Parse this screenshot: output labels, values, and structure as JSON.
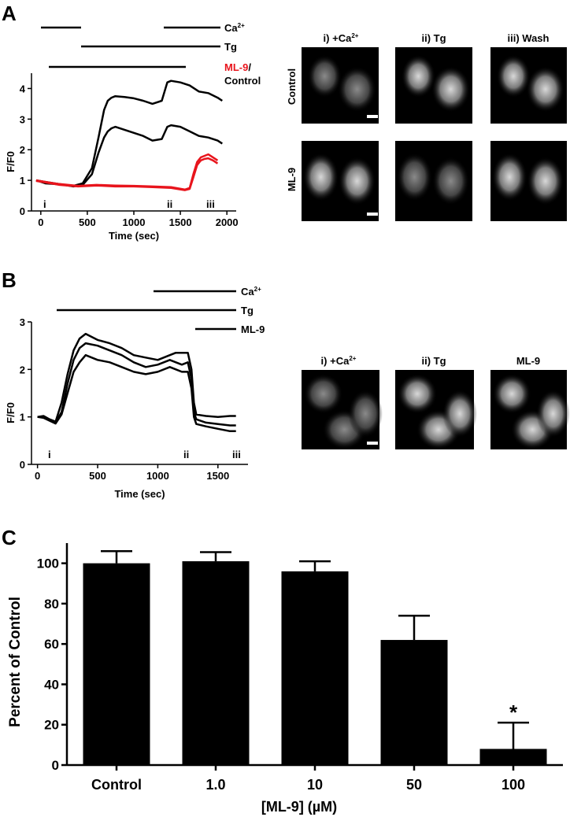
{
  "panel_a": {
    "label": "A",
    "bars": {
      "ca": "Ca",
      "ca_sup": "2+",
      "tg": "Tg",
      "ml9": "ML-9",
      "slash": "/",
      "control": "Control"
    },
    "image_col_labels": [
      "i) +Ca",
      "ii) Tg",
      "iii) Wash"
    ],
    "image_col_sup": "2+",
    "image_row_labels": [
      "Control",
      "ML-9"
    ],
    "time_markers": [
      "i",
      "ii",
      "iii"
    ],
    "colors": {
      "control": "#000000",
      "ml9": "#e8141c"
    }
  },
  "panel_b": {
    "label": "B",
    "bars": {
      "ca": "Ca",
      "ca_sup": "2+",
      "tg": "Tg",
      "ml9": "ML-9"
    },
    "image_col_labels": [
      "i) +Ca",
      "ii) Tg",
      "ML-9"
    ],
    "image_col_sup": "2+",
    "time_markers": [
      "i",
      "ii",
      "iii"
    ]
  },
  "panel_c": {
    "label": "C"
  },
  "chart_data": [
    {
      "type": "line",
      "xlabel": "Time (sec)",
      "ylabel": "F/F0",
      "xlim": [
        -100,
        2100
      ],
      "ylim": [
        0,
        4.5
      ],
      "xticks": [
        0,
        500,
        1000,
        1500,
        2000
      ],
      "yticks": [
        0,
        1,
        2,
        3,
        4
      ],
      "series": [
        {
          "x": [
            -50,
            50,
            150,
            250,
            350,
            450,
            550,
            620,
            680,
            720,
            760,
            800,
            900,
            1000,
            1100,
            1200,
            1300,
            1360,
            1400,
            1500,
            1600,
            1700,
            1800,
            1900,
            1950
          ],
          "y": [
            1.0,
            0.95,
            0.9,
            0.85,
            0.82,
            0.9,
            1.4,
            2.4,
            3.3,
            3.6,
            3.7,
            3.75,
            3.72,
            3.68,
            3.6,
            3.5,
            3.6,
            4.2,
            4.25,
            4.2,
            4.1,
            3.9,
            3.85,
            3.7,
            3.6
          ]
        },
        {
          "x": [
            -50,
            50,
            150,
            250,
            350,
            450,
            550,
            620,
            680,
            720,
            760,
            800,
            900,
            1000,
            1100,
            1200,
            1300,
            1360,
            1400,
            1500,
            1600,
            1700,
            1800,
            1900,
            1950
          ],
          "y": [
            1.0,
            0.9,
            0.88,
            0.85,
            0.8,
            0.85,
            1.2,
            1.9,
            2.4,
            2.6,
            2.7,
            2.75,
            2.65,
            2.55,
            2.45,
            2.3,
            2.35,
            2.75,
            2.8,
            2.75,
            2.6,
            2.45,
            2.4,
            2.3,
            2.2
          ]
        },
        {
          "x": [
            -50,
            50,
            200,
            400,
            600,
            800,
            1000,
            1200,
            1400,
            1550,
            1600,
            1640,
            1680,
            1720,
            1760,
            1800,
            1850,
            1900
          ],
          "y": [
            1.0,
            0.95,
            0.88,
            0.82,
            0.85,
            0.83,
            0.82,
            0.8,
            0.78,
            0.7,
            0.75,
            1.2,
            1.6,
            1.75,
            1.8,
            1.85,
            1.75,
            1.65
          ]
        },
        {
          "x": [
            -50,
            50,
            200,
            400,
            600,
            800,
            1000,
            1200,
            1400,
            1550,
            1600,
            1640,
            1680,
            1720,
            1760,
            1800,
            1850,
            1900
          ],
          "y": [
            0.98,
            0.93,
            0.85,
            0.8,
            0.83,
            0.8,
            0.8,
            0.78,
            0.75,
            0.68,
            0.72,
            1.1,
            1.5,
            1.65,
            1.7,
            1.72,
            1.65,
            1.55
          ]
        }
      ]
    },
    {
      "type": "line",
      "xlabel": "Time (sec)",
      "ylabel": "F/F0",
      "xlim": [
        -50,
        1750
      ],
      "ylim": [
        0,
        3
      ],
      "xticks": [
        0,
        500,
        1000,
        1500
      ],
      "yticks": [
        0,
        1,
        2,
        3
      ],
      "series": [
        {
          "x": [
            0,
            50,
            100,
            150,
            200,
            250,
            300,
            350,
            400,
            500,
            600,
            700,
            800,
            900,
            1000,
            1100,
            1150,
            1200,
            1250,
            1280,
            1300,
            1320,
            1400,
            1500,
            1600,
            1650
          ],
          "y": [
            1.0,
            1.02,
            0.95,
            0.9,
            1.3,
            1.9,
            2.4,
            2.65,
            2.75,
            2.62,
            2.55,
            2.45,
            2.3,
            2.25,
            2.2,
            2.3,
            2.35,
            2.35,
            2.35,
            2.0,
            1.3,
            1.05,
            1.02,
            1.0,
            1.02,
            1.02
          ]
        },
        {
          "x": [
            0,
            50,
            100,
            150,
            200,
            250,
            300,
            350,
            400,
            500,
            600,
            700,
            800,
            900,
            1000,
            1100,
            1150,
            1200,
            1250,
            1280,
            1300,
            1320,
            1400,
            1500,
            1600,
            1650
          ],
          "y": [
            1.0,
            1.0,
            0.93,
            0.88,
            1.1,
            1.7,
            2.2,
            2.45,
            2.55,
            2.5,
            2.4,
            2.3,
            2.15,
            2.05,
            2.1,
            2.2,
            2.15,
            2.1,
            2.15,
            1.8,
            1.1,
            0.95,
            0.88,
            0.85,
            0.82,
            0.82
          ]
        },
        {
          "x": [
            0,
            50,
            100,
            150,
            200,
            250,
            300,
            350,
            400,
            500,
            600,
            700,
            800,
            900,
            1000,
            1100,
            1150,
            1200,
            1250,
            1280,
            1300,
            1320,
            1400,
            1500,
            1600,
            1650
          ],
          "y": [
            1.0,
            0.98,
            0.92,
            0.86,
            1.05,
            1.5,
            1.95,
            2.15,
            2.3,
            2.2,
            2.15,
            2.05,
            1.95,
            1.9,
            1.95,
            2.05,
            2.0,
            1.95,
            1.95,
            1.6,
            1.0,
            0.85,
            0.8,
            0.75,
            0.7,
            0.7
          ]
        }
      ]
    },
    {
      "type": "bar",
      "categories": [
        "Control",
        "1.0",
        "10",
        "50",
        "100"
      ],
      "values": [
        100,
        101,
        96,
        62,
        8
      ],
      "errors": [
        6,
        4.5,
        5,
        12,
        13
      ],
      "significance": [
        null,
        null,
        null,
        null,
        "*"
      ],
      "xlabel": "[ML-9] (µM)",
      "ylabel": "Percent of Control",
      "ylim": [
        0,
        110
      ],
      "yticks": [
        0,
        20,
        40,
        60,
        80,
        100
      ]
    }
  ]
}
